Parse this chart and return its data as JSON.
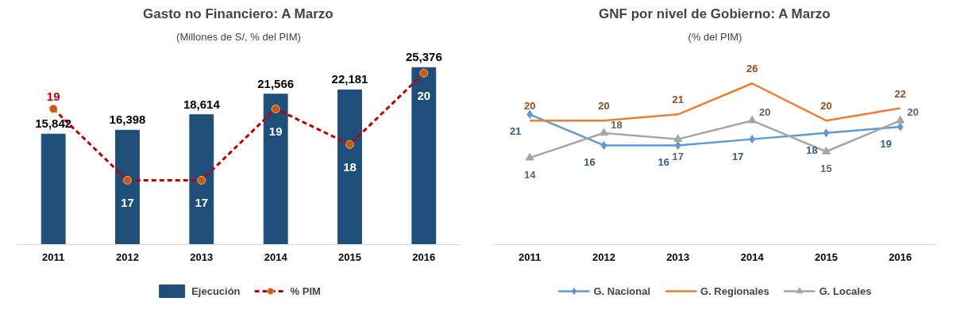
{
  "chart_data": [
    {
      "type": "bar",
      "title": "Gasto no Financiero: A Marzo",
      "subtitle": "(Millones de S/, % del PIM)",
      "categories": [
        "2011",
        "2012",
        "2013",
        "2014",
        "2015",
        "2016"
      ],
      "tick_labels": "x",
      "legend": "bottom",
      "data_labels": true,
      "series": [
        {
          "name": "Ejecución",
          "color": "#1f4e79",
          "values": [
            15842,
            16398,
            18614,
            21566,
            22181,
            25376
          ],
          "value_labels": [
            "15,842",
            "16,398",
            "18,614",
            "21,566",
            "22,181",
            "25,376"
          ]
        },
        {
          "name": "% PIM",
          "type": "line",
          "axis": "y2",
          "color": "#c00000",
          "line_style": "dashed",
          "marker": "circle",
          "values": [
            19,
            17,
            17,
            19,
            18,
            20
          ]
        }
      ]
    },
    {
      "type": "line",
      "title": "GNF por nivel de Gobierno: A Marzo",
      "subtitle": "(% del PIM)",
      "categories": [
        "2011",
        "2012",
        "2013",
        "2014",
        "2015",
        "2016"
      ],
      "tick_labels": "x",
      "legend": "bottom",
      "data_labels": true,
      "series": [
        {
          "name": "G. Nacional",
          "color": "#5b9bd5",
          "marker": "diamond",
          "values": [
            21,
            16,
            16,
            17,
            18,
            19
          ]
        },
        {
          "name": "G. Regionales",
          "color": "#ed7d31",
          "values": [
            20,
            20,
            21,
            26,
            20,
            22
          ]
        },
        {
          "name": "G. Locales",
          "color": "#a5a5a5",
          "marker": "triangle",
          "values": [
            14,
            18,
            17,
            20,
            15,
            20
          ]
        }
      ]
    }
  ]
}
